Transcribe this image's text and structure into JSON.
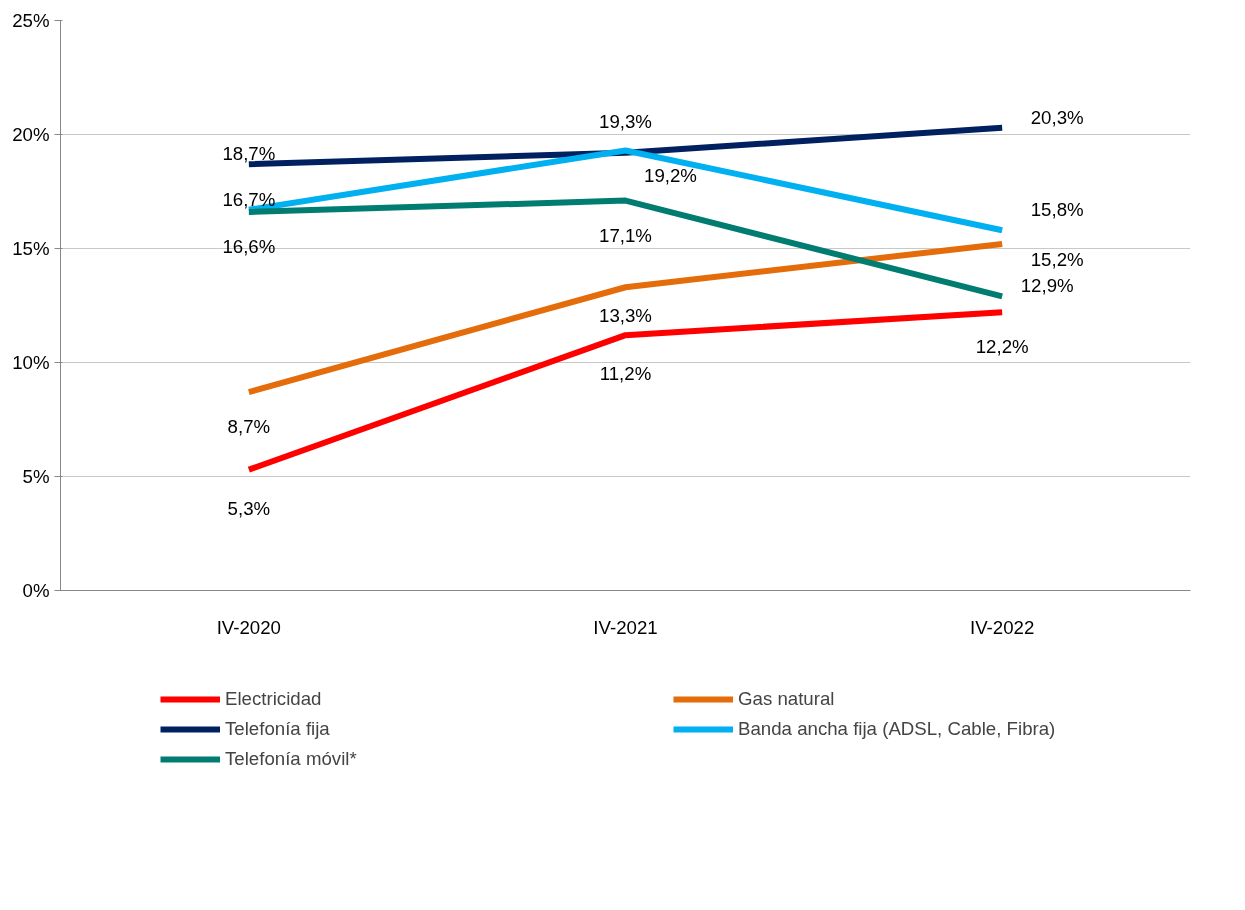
{
  "chart_data": {
    "type": "line",
    "categories": [
      "IV-2020",
      "IV-2021",
      "IV-2022"
    ],
    "series": [
      {
        "name": "Electricidad",
        "color": "#ff0000",
        "values": [
          5.3,
          11.2,
          12.2
        ],
        "value_labels": [
          "5,3%",
          "11,2%",
          "12,2%"
        ]
      },
      {
        "name": "Gas natural",
        "color": "#e46c0a",
        "values": [
          8.7,
          13.3,
          15.2
        ],
        "value_labels": [
          "8,7%",
          "13,3%",
          "15,2%"
        ]
      },
      {
        "name": "Telefonía fija",
        "color": "#002060",
        "values": [
          18.7,
          19.2,
          20.3
        ],
        "value_labels": [
          "18,7%",
          "19,2%",
          "20,3%"
        ]
      },
      {
        "name": "Banda ancha fija (ADSL, Cable, Fibra)",
        "color": "#00b0f0",
        "values": [
          16.7,
          19.3,
          15.8
        ],
        "value_labels": [
          "16,7%",
          "19,3%",
          "15,8%"
        ]
      },
      {
        "name": "Telefonía móvil*",
        "color": "#007c70",
        "values": [
          16.6,
          17.1,
          12.9
        ],
        "value_labels": [
          "16,6%",
          "17,1%",
          "12,9%"
        ]
      }
    ],
    "ylim": [
      0,
      25
    ],
    "yticks": [
      {
        "value": 0,
        "label": "0%"
      },
      {
        "value": 5,
        "label": "5%"
      },
      {
        "value": 10,
        "label": "10%"
      },
      {
        "value": 15,
        "label": "15%"
      },
      {
        "value": 20,
        "label": "20%"
      },
      {
        "value": 25,
        "label": "25%"
      }
    ],
    "grid": "y",
    "legend": "bottom",
    "marker": "none",
    "line_style": "solid"
  }
}
